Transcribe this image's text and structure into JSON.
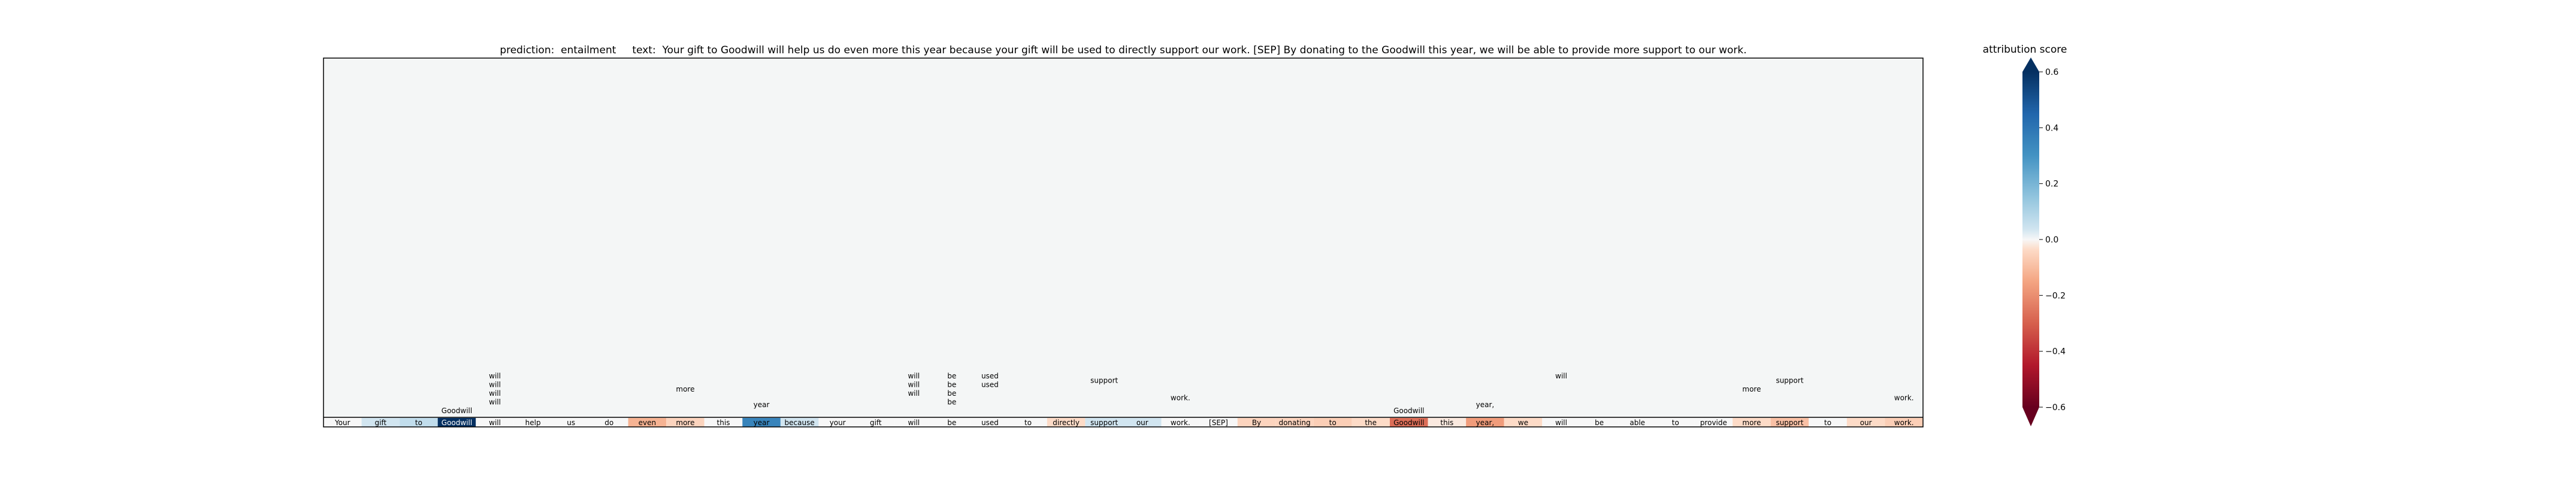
{
  "chart_data": {
    "type": "heatmap",
    "title_parts": {
      "prediction_label": "prediction:",
      "prediction": "entailment",
      "text_label": "text:",
      "text": "Your gift to Goodwill will help us do even more this year because your gift will be used to directly support our work. [SEP] By donating to the Goodwill this year, we will be able to provide more support to our work."
    },
    "tokens": [
      "Your",
      "gift",
      "to",
      "Goodwill",
      "will",
      "help",
      "us",
      "do",
      "even",
      "more",
      "this",
      "year",
      "because",
      "your",
      "gift",
      "will",
      "be",
      "used",
      "to",
      "directly",
      "support",
      "our",
      "work.",
      "[SEP]",
      "By",
      "donating",
      "to",
      "the",
      "Goodwill",
      "this",
      "year,",
      "we",
      "will",
      "be",
      "able",
      "to",
      "provide",
      "more",
      "support",
      "to",
      "our",
      "work."
    ],
    "token_scores": [
      0.0,
      0.02,
      0.04,
      0.62,
      0.0,
      0.0,
      0.0,
      0.0,
      -0.08,
      -0.03,
      0.0,
      0.3,
      0.02,
      0.0,
      0.0,
      0.0,
      0.0,
      0.0,
      0.0,
      -0.02,
      0.02,
      0.02,
      0.0,
      0.0,
      -0.03,
      -0.03,
      -0.04,
      -0.02,
      -0.22,
      -0.01,
      -0.12,
      -0.02,
      0.0,
      0.0,
      0.0,
      0.0,
      0.0,
      -0.02,
      -0.06,
      0.0,
      -0.02,
      -0.04
    ],
    "above_labels": [
      {
        "col": 3,
        "row": 0,
        "text": "Goodwill"
      },
      {
        "col": 4,
        "row": 1,
        "text": "will"
      },
      {
        "col": 4,
        "row": 2,
        "text": "will"
      },
      {
        "col": 4,
        "row": 3,
        "text": "will"
      },
      {
        "col": 4,
        "row": 4,
        "text": "will"
      },
      {
        "col": 9,
        "row": 2.5,
        "text": "more"
      },
      {
        "col": 11,
        "row": 0.7,
        "text": "year"
      },
      {
        "col": 15,
        "row": 2,
        "text": "will"
      },
      {
        "col": 15,
        "row": 3,
        "text": "will"
      },
      {
        "col": 15,
        "row": 4,
        "text": "will"
      },
      {
        "col": 16,
        "row": 1,
        "text": "be"
      },
      {
        "col": 16,
        "row": 2,
        "text": "be"
      },
      {
        "col": 16,
        "row": 3,
        "text": "be"
      },
      {
        "col": 16,
        "row": 4,
        "text": "be"
      },
      {
        "col": 17,
        "row": 3,
        "text": "used"
      },
      {
        "col": 17,
        "row": 4,
        "text": "used"
      },
      {
        "col": 20,
        "row": 3.5,
        "text": "support"
      },
      {
        "col": 22,
        "row": 1.5,
        "text": "work."
      },
      {
        "col": 28,
        "row": 0,
        "text": "Goodwill"
      },
      {
        "col": 30,
        "row": 0.7,
        "text": "year,"
      },
      {
        "col": 32,
        "row": 4,
        "text": "will"
      },
      {
        "col": 37,
        "row": 2.5,
        "text": "more"
      },
      {
        "col": 38,
        "row": 3.5,
        "text": "support"
      },
      {
        "col": 41,
        "row": 1.5,
        "text": "work."
      }
    ],
    "colorbar": {
      "title": "attribution score",
      "ticks": [
        0.6,
        0.4,
        0.2,
        0.0,
        -0.2,
        -0.4,
        -0.6
      ],
      "tick_labels": [
        "0.6",
        "0.4",
        "0.2",
        "0.0",
        "−0.2",
        "−0.4",
        "−0.6"
      ],
      "vmin": -0.6,
      "vmax": 0.6,
      "colormap": "RdBu"
    },
    "colors": {
      "plot_background": "#f4f6f6",
      "positive": "#053061",
      "negative": "#67001f"
    }
  }
}
